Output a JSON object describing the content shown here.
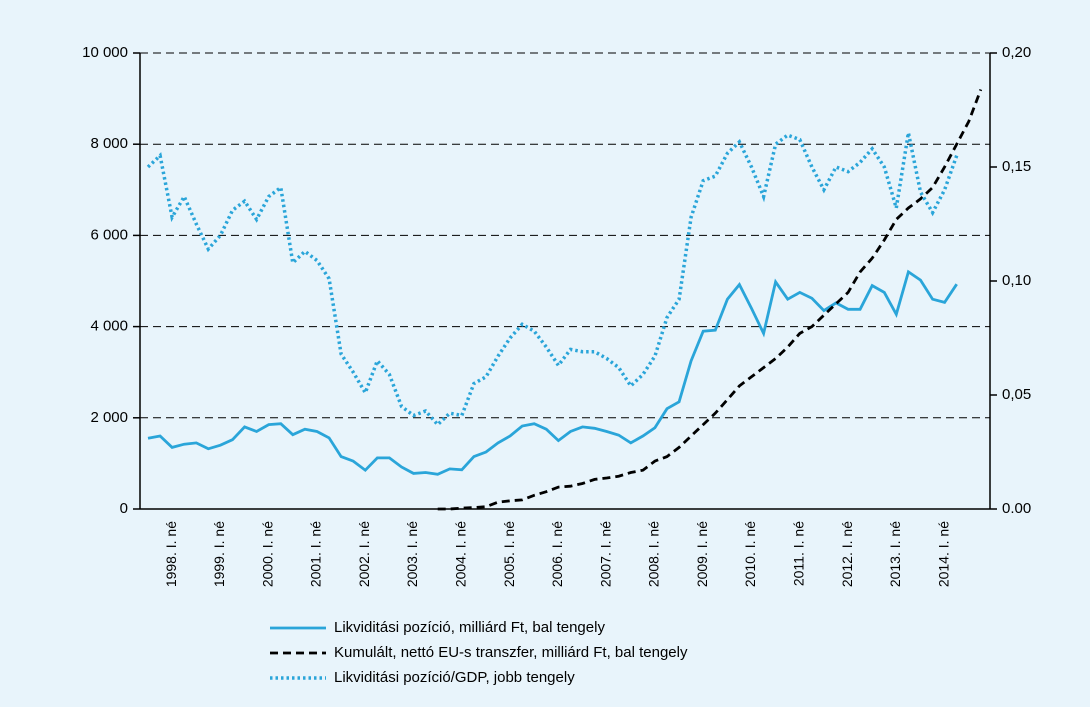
{
  "chart_data": {
    "type": "line",
    "categories": [
      null,
      null,
      "1998. I. né",
      null,
      null,
      null,
      "1999. I. né",
      null,
      null,
      null,
      "2000. I. né",
      null,
      null,
      null,
      "2001. I. né",
      null,
      null,
      null,
      "2002. I. né",
      null,
      null,
      null,
      "2003. I. né",
      null,
      null,
      null,
      "2004. I. né",
      null,
      null,
      null,
      "2005. I. né",
      null,
      null,
      null,
      "2006. I. né",
      null,
      null,
      null,
      "2007. I. né",
      null,
      null,
      null,
      "2008. I. né",
      null,
      null,
      null,
      "2009. I. né",
      null,
      null,
      null,
      "2010. I. né",
      null,
      null,
      null,
      "2011. I. né",
      null,
      null,
      null,
      "2012. I. né",
      null,
      null,
      null,
      "2013. I. né",
      null,
      null,
      null,
      "2014. I. né",
      null,
      null,
      null
    ],
    "series": [
      {
        "name": "Likviditási pozíció, milliárd Ft, bal tengely",
        "color": "#2aa5d9",
        "line_style": "solid",
        "values": [
          1550,
          1600,
          1350,
          1420,
          1450,
          1320,
          1400,
          1520,
          1800,
          1700,
          1850,
          1870,
          1630,
          1750,
          1700,
          1560,
          1150,
          1050,
          850,
          1120,
          1120,
          920,
          780,
          800,
          760,
          880,
          860,
          1150,
          1250,
          1450,
          1600,
          1820,
          1870,
          1750,
          1500,
          1700,
          1800,
          1770,
          1700,
          1620,
          1450,
          1600,
          1780,
          2200,
          2350,
          3250,
          3900,
          3920,
          4600,
          4920,
          4400,
          3850,
          4980,
          4600,
          4750,
          4620,
          4350,
          4520,
          4380,
          4380,
          4900,
          4750,
          4270,
          5200,
          5020,
          4600,
          4530,
          4930,
          null,
          null
        ]
      },
      {
        "name": "Kumulált, nettó EU-s transzfer, milliárd Ft, bal tengely",
        "color": "#000000",
        "line_style": "dashed",
        "values": [
          null,
          null,
          null,
          null,
          null,
          null,
          null,
          null,
          null,
          null,
          null,
          null,
          null,
          null,
          null,
          null,
          null,
          null,
          null,
          null,
          null,
          null,
          null,
          null,
          0,
          0,
          20,
          30,
          50,
          150,
          180,
          200,
          300,
          380,
          480,
          500,
          560,
          650,
          680,
          720,
          800,
          850,
          1050,
          1150,
          1350,
          1600,
          1850,
          2100,
          2400,
          2700,
          2900,
          3100,
          3300,
          3550,
          3850,
          4000,
          4250,
          4500,
          4750,
          5200,
          5500,
          5900,
          6350,
          6600,
          6800,
          7050,
          7500,
          8000,
          8500,
          9200
        ]
      },
      {
        "name": "Likviditási pozíció/GDP, jobb tengely",
        "color": "#2aa5d9",
        "line_style": "dotted",
        "axis": "y2",
        "values": [
          0.15,
          0.155,
          0.128,
          0.137,
          0.125,
          0.114,
          0.12,
          0.131,
          0.135,
          0.127,
          0.137,
          0.141,
          0.108,
          0.113,
          0.109,
          0.101,
          0.068,
          0.06,
          0.051,
          0.065,
          0.059,
          0.045,
          0.041,
          0.043,
          0.037,
          0.042,
          0.041,
          0.055,
          0.058,
          0.067,
          0.075,
          0.081,
          0.078,
          0.071,
          0.063,
          0.07,
          0.069,
          0.069,
          0.066,
          0.062,
          0.054,
          0.059,
          0.067,
          0.084,
          0.092,
          0.128,
          0.144,
          0.146,
          0.156,
          0.161,
          0.15,
          0.137,
          0.16,
          0.164,
          0.162,
          0.15,
          0.14,
          0.15,
          0.148,
          0.152,
          0.158,
          0.15,
          0.132,
          0.165,
          0.139,
          0.13,
          0.14,
          0.155,
          null,
          null
        ]
      }
    ],
    "ylim": [
      0,
      10000
    ],
    "yticks": [
      0,
      {
        "value": 2000,
        "label": "2 000"
      },
      {
        "value": 4000,
        "label": "4 000"
      },
      {
        "value": 6000,
        "label": "6 000"
      },
      {
        "value": 8000,
        "label": "8 000"
      },
      {
        "value": 10000,
        "label": "10 000"
      }
    ],
    "y2lim": [
      0,
      0.2
    ],
    "y2ticks": [
      {
        "value": 0,
        "label": "0.00"
      },
      {
        "value": 0.05,
        "label": "0,05"
      },
      {
        "value": 0.1,
        "label": "0,10"
      },
      {
        "value": 0.15,
        "label": "0,15"
      },
      {
        "value": 0.2,
        "label": "0,20"
      }
    ],
    "grid": true,
    "legend": "bottom"
  }
}
